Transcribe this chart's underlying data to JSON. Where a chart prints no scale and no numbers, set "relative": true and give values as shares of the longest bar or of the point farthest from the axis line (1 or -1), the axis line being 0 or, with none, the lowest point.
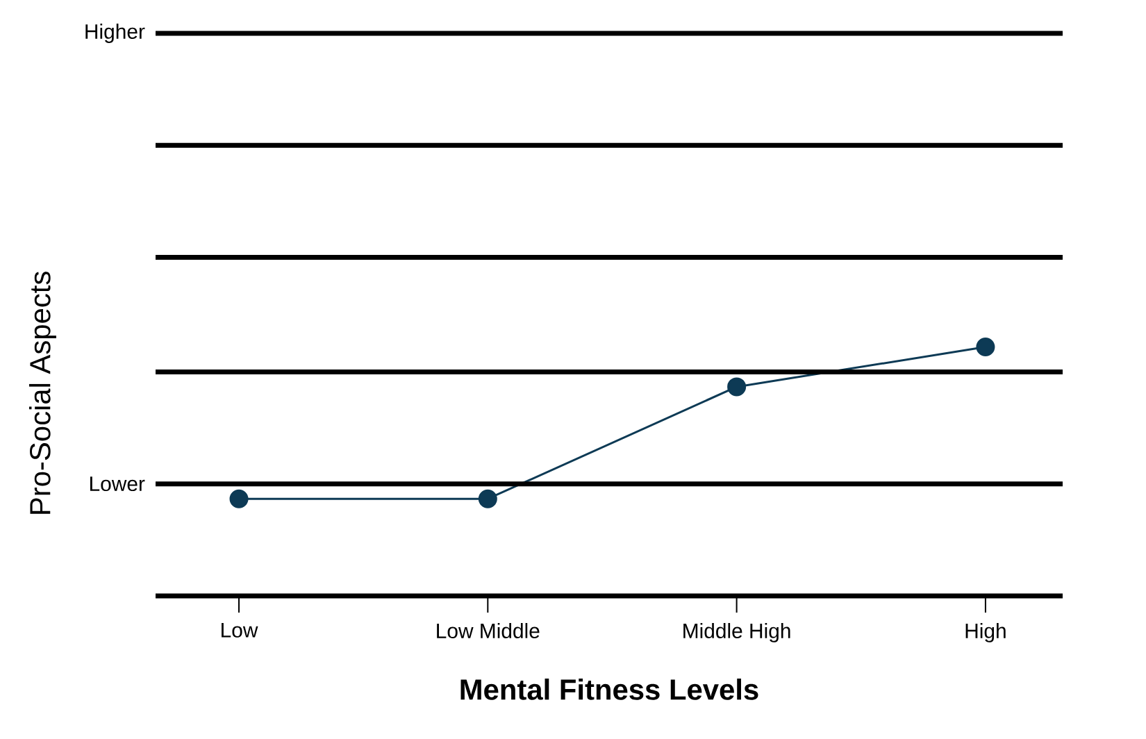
{
  "chart_data": {
    "type": "line",
    "xlabel": "Mental Fitness Levels",
    "ylabel": "Pro-Social Aspects",
    "categories": [
      "Low",
      "Low Middle",
      "Middle High",
      "High"
    ],
    "values": [
      0.39,
      0.39,
      0.84,
      1
    ],
    "relative": true,
    "color": "#0d3a55",
    "marker": "circle",
    "ref_lines": [
      {
        "axis": "y",
        "value": 2.26,
        "label": "Higher",
        "color": "#000000"
      },
      {
        "axis": "y",
        "value": 1.81,
        "color": "#000000"
      },
      {
        "axis": "y",
        "value": 1.36,
        "color": "#000000"
      },
      {
        "axis": "y",
        "value": 0.9,
        "color": "#000000"
      },
      {
        "axis": "y",
        "value": 0.45,
        "label": "Lower",
        "color": "#000000"
      }
    ]
  }
}
